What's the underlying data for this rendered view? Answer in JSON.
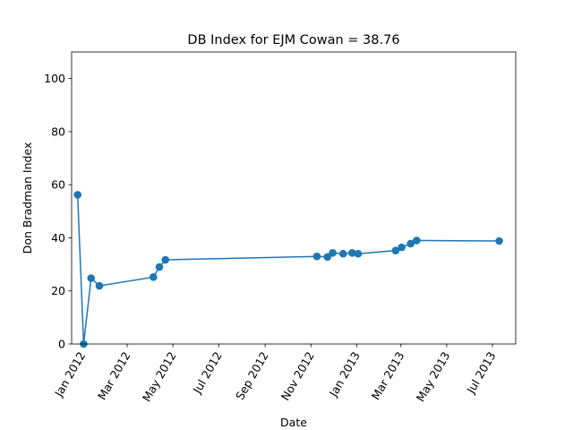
{
  "chart_data": {
    "type": "line",
    "title": "DB Index for EJM Cowan = 38.76",
    "xlabel": "Date",
    "ylabel": "Don Bradman Index",
    "xlim": [
      "2011-12-18",
      "2013-08-01"
    ],
    "ylim": [
      0,
      110
    ],
    "x_ticks": [
      {
        "date": "2012-01-01",
        "label": "Jan 2012"
      },
      {
        "date": "2012-03-01",
        "label": "Mar 2012"
      },
      {
        "date": "2012-05-01",
        "label": "May 2012"
      },
      {
        "date": "2012-07-01",
        "label": "Jul 2012"
      },
      {
        "date": "2012-09-01",
        "label": "Sep 2012"
      },
      {
        "date": "2012-11-01",
        "label": "Nov 2012"
      },
      {
        "date": "2013-01-01",
        "label": "Jan 2013"
      },
      {
        "date": "2013-03-01",
        "label": "Mar 2013"
      },
      {
        "date": "2013-05-01",
        "label": "May 2013"
      },
      {
        "date": "2013-07-01",
        "label": "Jul 2013"
      }
    ],
    "y_ticks": [
      0,
      20,
      40,
      60,
      80,
      100
    ],
    "grid": false,
    "series": [
      {
        "color": "#1f77b4",
        "points": [
          {
            "x": "2011-12-26",
            "y": 56.2
          },
          {
            "x": "2012-01-03",
            "y": 0.0
          },
          {
            "x": "2012-01-13",
            "y": 24.8
          },
          {
            "x": "2012-01-24",
            "y": 21.9
          },
          {
            "x": "2012-04-05",
            "y": 25.2
          },
          {
            "x": "2012-04-13",
            "y": 29.0
          },
          {
            "x": "2012-04-21",
            "y": 31.7
          },
          {
            "x": "2012-11-09",
            "y": 33.0
          },
          {
            "x": "2012-11-23",
            "y": 32.8
          },
          {
            "x": "2012-11-30",
            "y": 34.3
          },
          {
            "x": "2012-12-14",
            "y": 34.0
          },
          {
            "x": "2012-12-26",
            "y": 34.3
          },
          {
            "x": "2013-01-03",
            "y": 34.0
          },
          {
            "x": "2013-02-22",
            "y": 35.2
          },
          {
            "x": "2013-03-02",
            "y": 36.4
          },
          {
            "x": "2013-03-14",
            "y": 37.8
          },
          {
            "x": "2013-03-22",
            "y": 39.0
          },
          {
            "x": "2013-07-10",
            "y": 38.8
          }
        ]
      }
    ]
  }
}
